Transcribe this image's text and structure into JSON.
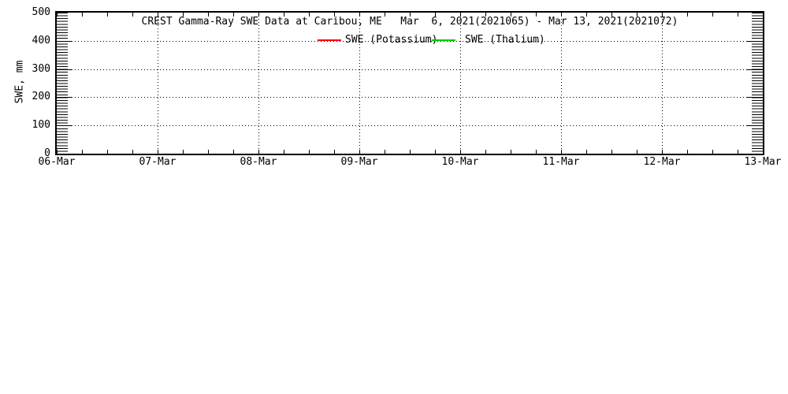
{
  "page": {
    "background_color": "#ffffff"
  },
  "chart_data": {
    "type": "line",
    "title": "CREST Gamma-Ray SWE Data at Caribou, ME   Mar  6, 2021(2021065) - Mar 13, 2021(2021072)",
    "xlabel": "",
    "ylabel": "SWE, mm",
    "ylim": [
      0,
      500
    ],
    "yticks": [
      0,
      100,
      200,
      300,
      400,
      500
    ],
    "y_minor_tick_step": 10,
    "xtick_labels": [
      "06-Mar",
      "07-Mar",
      "08-Mar",
      "09-Mar",
      "10-Mar",
      "11-Mar",
      "12-Mar",
      "13-Mar"
    ],
    "x_minor_ticks_per_day": 4,
    "grid": "dotted",
    "axis_color": "#000000",
    "legend_position": "top-center",
    "series": [
      {
        "name": "SWE (Potassium)",
        "color": "#ff0000",
        "x": [],
        "values": []
      },
      {
        "name": "SWE (Thalium)",
        "color": "#00cc00",
        "x": [],
        "values": []
      }
    ]
  }
}
